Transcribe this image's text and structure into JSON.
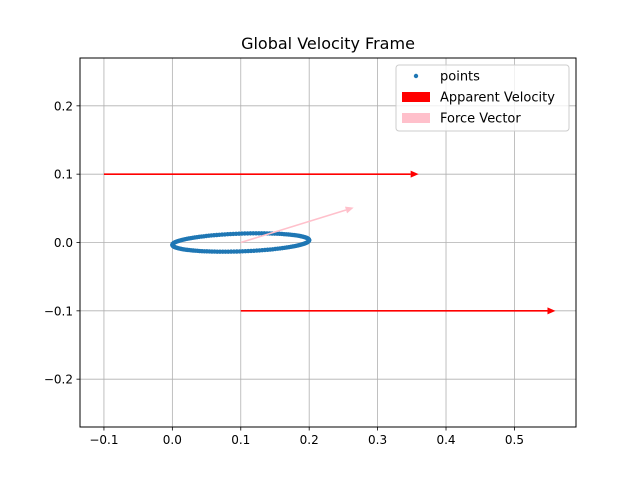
{
  "chart_data": {
    "type": "scatter",
    "title": "Global Velocity Frame",
    "xlabel": "",
    "ylabel": "",
    "xlim": [
      -0.135,
      0.59
    ],
    "ylim": [
      -0.27,
      0.27
    ],
    "grid": true,
    "legend_position": "upper right",
    "x_ticks": [
      {
        "value": -0.1,
        "label": "−0.1"
      },
      {
        "value": 0.0,
        "label": "0.0"
      },
      {
        "value": 0.1,
        "label": "0.1"
      },
      {
        "value": 0.2,
        "label": "0.2"
      },
      {
        "value": 0.3,
        "label": "0.3"
      },
      {
        "value": 0.4,
        "label": "0.4"
      },
      {
        "value": 0.5,
        "label": "0.5"
      }
    ],
    "y_ticks": [
      {
        "value": -0.2,
        "label": "−0.2"
      },
      {
        "value": -0.1,
        "label": "−0.1"
      },
      {
        "value": 0.0,
        "label": "0.0"
      },
      {
        "value": 0.1,
        "label": "0.1"
      },
      {
        "value": 0.2,
        "label": "0.2"
      }
    ],
    "points": {
      "name": "points",
      "color": "#1f77b4",
      "shape": "ellipse",
      "center": [
        0.1,
        0.0
      ],
      "semi_axes": [
        0.1,
        0.013
      ],
      "rotation_deg": 2,
      "count": 150
    },
    "apparent_velocity": {
      "name": "Apparent Velocity",
      "color": "#ff0000",
      "arrows": [
        {
          "x0": -0.1,
          "y0": 0.1,
          "x1": 0.36,
          "y1": 0.1
        },
        {
          "x0": 0.1,
          "y0": -0.1,
          "x1": 0.56,
          "y1": -0.1
        }
      ]
    },
    "force_vector": {
      "name": "Force Vector",
      "color": "#ffc0cb",
      "arrows": [
        {
          "x0": 0.1,
          "y0": 0.0,
          "x1": 0.265,
          "y1": 0.051
        }
      ]
    },
    "legend": [
      {
        "label": "points",
        "kind": "marker",
        "color": "#1f77b4"
      },
      {
        "label": "Apparent Velocity",
        "kind": "patch",
        "color": "#ff0000"
      },
      {
        "label": "Force Vector",
        "kind": "patch",
        "color": "#ffc0cb"
      }
    ]
  }
}
